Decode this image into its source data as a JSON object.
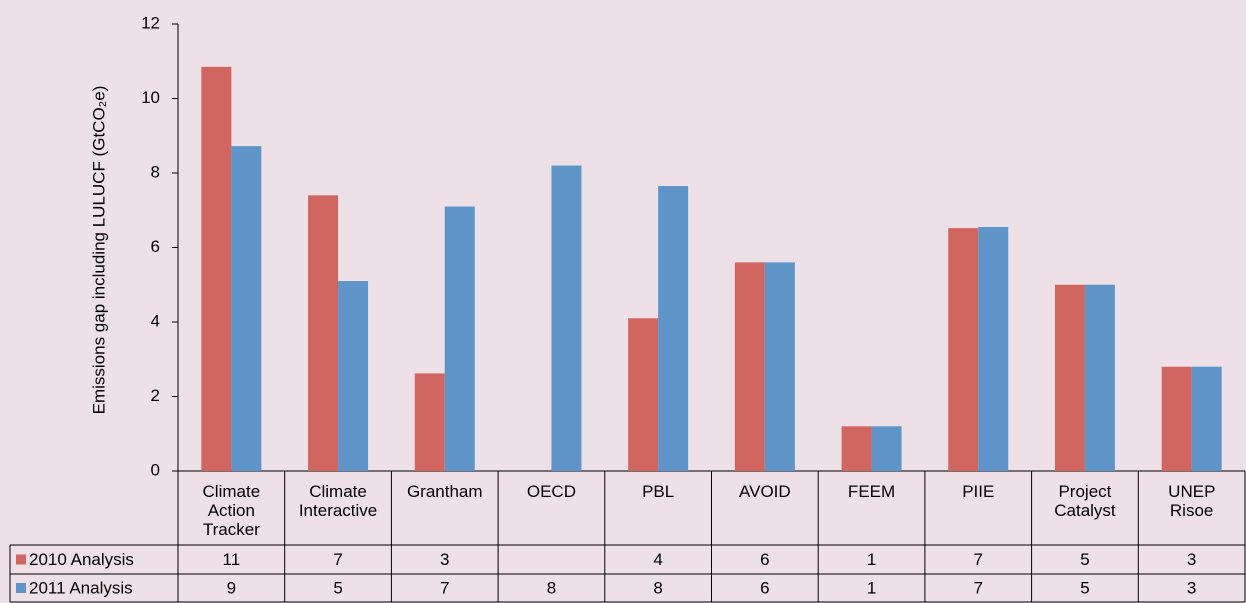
{
  "chart_data": {
    "type": "bar",
    "y_label": "Emissions gap including LULUCF  (GtCO₂e)",
    "categories": [
      "Climate Action Tracker",
      "Climate Interactive",
      "Grantham",
      "OECD",
      "PBL",
      "AVOID",
      "FEEM",
      "PIIE",
      "Project Catalyst",
      "UNEP Risoe"
    ],
    "series": [
      {
        "name": "2010 Analysis",
        "color": "#d0665f",
        "values": [
          10.85,
          7.4,
          2.62,
          null,
          4.1,
          5.6,
          1.2,
          6.52,
          5.0,
          2.8
        ],
        "value_labels": [
          "11",
          "7",
          "3",
          null,
          "4",
          "6",
          "1",
          "7",
          "5",
          "3"
        ]
      },
      {
        "name": "2011 Analysis",
        "color": "#5f94c8",
        "values": [
          8.72,
          5.1,
          7.1,
          8.2,
          7.65,
          5.6,
          1.2,
          6.55,
          5.0,
          2.8
        ],
        "value_labels": [
          "9",
          "5",
          "7",
          "8",
          "8",
          "6",
          "1",
          "7",
          "5",
          "3"
        ]
      }
    ],
    "ylim": [
      0,
      12
    ],
    "yticks": [
      0,
      2,
      4,
      6,
      8,
      10,
      12
    ],
    "grid": false
  }
}
